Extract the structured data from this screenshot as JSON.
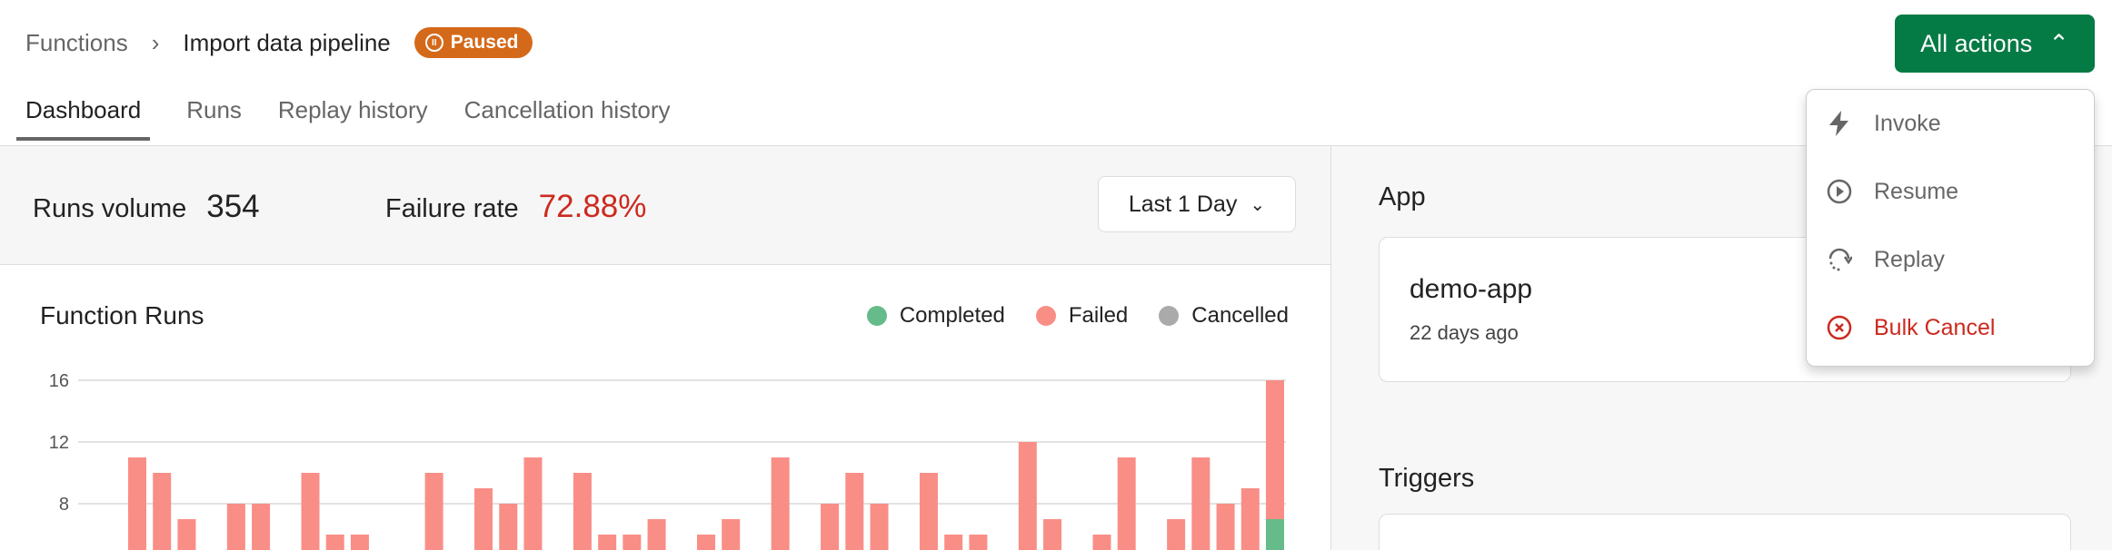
{
  "breadcrumb": {
    "parent": "Functions",
    "current": "Import data pipeline",
    "status": "Paused"
  },
  "tabs": [
    {
      "label": "Dashboard",
      "active": true
    },
    {
      "label": "Runs"
    },
    {
      "label": "Replay history"
    },
    {
      "label": "Cancellation history"
    }
  ],
  "actions": {
    "label": "All actions",
    "menu": [
      {
        "label": "Invoke",
        "icon": "lightning-icon"
      },
      {
        "label": "Resume",
        "icon": "play-circle-icon"
      },
      {
        "label": "Replay",
        "icon": "replay-icon"
      },
      {
        "label": "Bulk Cancel",
        "icon": "x-circle-icon",
        "danger": true
      }
    ]
  },
  "stats": {
    "runs_volume_label": "Runs volume",
    "runs_volume": "354",
    "failure_rate_label": "Failure rate",
    "failure_rate": "72.88%",
    "range": "Last 1 Day"
  },
  "app": {
    "heading": "App",
    "name": "demo-app",
    "updated": "22 days ago"
  },
  "triggers": {
    "heading": "Triggers"
  },
  "colors": {
    "completed": "#66bb8a",
    "failed": "#f98e87",
    "cancelled": "#aaaaaa",
    "accent": "#047a44",
    "paused": "#d5691a",
    "danger": "#cc2a1f"
  },
  "chart_data": {
    "type": "bar",
    "stacked": true,
    "title": "Function Runs",
    "legend": [
      "Completed",
      "Failed",
      "Cancelled"
    ],
    "legend_position": "top-right",
    "yticks": [
      "8",
      "12",
      "16"
    ],
    "grid": true,
    "series": [
      {
        "name": "Completed",
        "values": [
          0,
          0,
          0,
          0,
          0,
          0,
          0,
          0,
          0,
          0,
          0,
          0,
          0,
          0,
          0,
          0,
          0,
          0,
          0,
          0,
          0,
          0,
          0,
          0,
          0,
          0,
          0,
          0,
          0,
          0,
          0,
          0,
          0,
          0,
          0,
          0,
          0,
          0,
          0,
          0,
          0,
          0,
          0,
          0,
          0,
          0,
          7
        ]
      },
      {
        "name": "Failed",
        "values": [
          11,
          10,
          7,
          0,
          8,
          8,
          0,
          10,
          6,
          6,
          0,
          0,
          10,
          0,
          9,
          8,
          11,
          0,
          10,
          6,
          6,
          7,
          0,
          6,
          7,
          0,
          11,
          0,
          8,
          10,
          8,
          0,
          10,
          6,
          6,
          0,
          12,
          7,
          0,
          6,
          11,
          0,
          7,
          11,
          8,
          9,
          9
        ]
      },
      {
        "name": "Cancelled",
        "values": [
          0,
          0,
          0,
          0,
          0,
          0,
          0,
          0,
          0,
          0,
          0,
          0,
          0,
          0,
          0,
          0,
          0,
          0,
          0,
          0,
          0,
          0,
          0,
          0,
          0,
          0,
          0,
          0,
          0,
          0,
          0,
          0,
          0,
          0,
          0,
          0,
          0,
          0,
          0,
          0,
          0,
          0,
          0,
          0,
          0,
          0,
          0
        ]
      }
    ]
  }
}
